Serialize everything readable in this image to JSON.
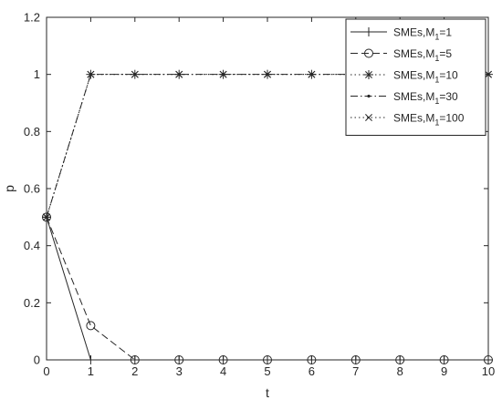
{
  "chart_data": {
    "type": "line",
    "xlabel": "t",
    "ylabel": "p",
    "xlim": [
      0,
      10
    ],
    "ylim": [
      0,
      1.2
    ],
    "x_ticks": [
      "0",
      "1",
      "2",
      "3",
      "4",
      "5",
      "6",
      "7",
      "8",
      "9",
      "10"
    ],
    "y_ticks": [
      "0",
      "0.2",
      "0.4",
      "0.6",
      "0.8",
      "1",
      "1.2"
    ],
    "x": [
      0,
      1,
      2,
      3,
      4,
      5,
      6,
      7,
      8,
      9,
      10
    ],
    "grid": false,
    "legend_position": "top-right",
    "series": [
      {
        "name_prefix": "SMEs,M",
        "name_sub": "1",
        "name_suffix": "=1",
        "linestyle": "solid",
        "marker": "plus",
        "values": [
          0.5,
          0,
          0,
          0,
          0,
          0,
          0,
          0,
          0,
          0,
          0
        ]
      },
      {
        "name_prefix": "SMEs,M",
        "name_sub": "1",
        "name_suffix": "=5",
        "linestyle": "dashed",
        "marker": "circle",
        "values": [
          0.5,
          0.12,
          0,
          0,
          0,
          0,
          0,
          0,
          0,
          0,
          0
        ]
      },
      {
        "name_prefix": "SMEs,M",
        "name_sub": "1",
        "name_suffix": "=10",
        "linestyle": "dotted",
        "marker": "asterisk",
        "values": [
          0.5,
          1,
          1,
          1,
          1,
          1,
          1,
          1,
          1,
          1,
          1
        ]
      },
      {
        "name_prefix": "SMEs,M",
        "name_sub": "1",
        "name_suffix": "=30",
        "linestyle": "dashdot",
        "marker": "dot",
        "values": [
          0.5,
          1,
          1,
          1,
          1,
          1,
          1,
          1,
          1,
          1,
          1
        ]
      },
      {
        "name_prefix": "SMEs,M",
        "name_sub": "1",
        "name_suffix": "=100",
        "linestyle": "dotted",
        "marker": "cross",
        "values": [
          0.5,
          1,
          1,
          1,
          1,
          1,
          1,
          1,
          1,
          1,
          1
        ]
      }
    ]
  }
}
